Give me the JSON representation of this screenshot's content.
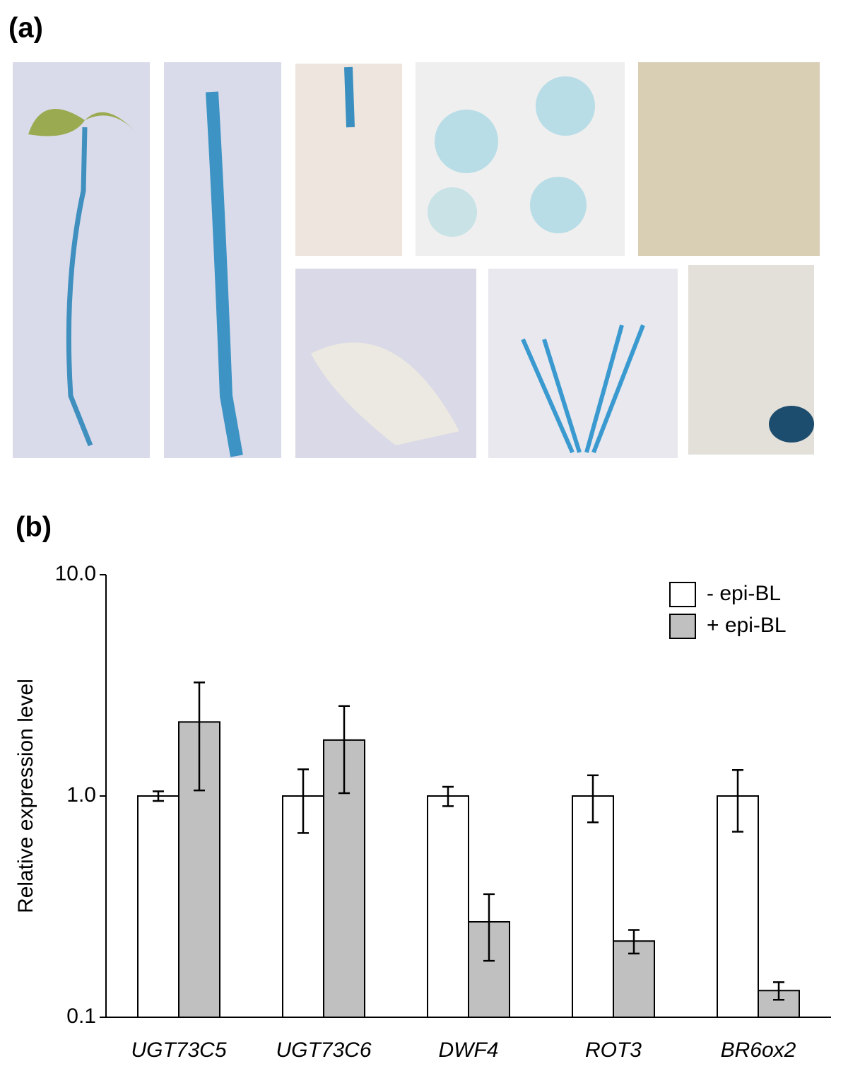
{
  "panel_labels": [
    "(a)",
    "(b)"
  ],
  "chart_data": {
    "type": "bar",
    "ylabel": "Relative expression level",
    "categories": [
      "UGT73C5",
      "UGT73C6",
      "DWF4",
      "ROT3",
      "BR6ox2"
    ],
    "series": [
      {
        "name": "- epi-BL",
        "color": "#ffffff",
        "values": [
          1.0,
          1.0,
          1.0,
          1.0,
          1.0
        ],
        "errors": [
          0.05,
          0.32,
          0.1,
          0.24,
          0.31
        ]
      },
      {
        "name": "+ epi-BL",
        "color": "#c0c0c0",
        "values": [
          2.16,
          1.79,
          0.27,
          0.221,
          0.132
        ],
        "errors": [
          1.1,
          0.76,
          0.09,
          0.027,
          0.012
        ]
      }
    ],
    "ylim": [
      0.1,
      10
    ],
    "yticks": [
      0.1,
      {
        "value": 1,
        "label": "1.0"
      },
      {
        "value": 10,
        "label": "10.0"
      }
    ],
    "log_scale": true,
    "grid": false,
    "legend": "upper right"
  }
}
